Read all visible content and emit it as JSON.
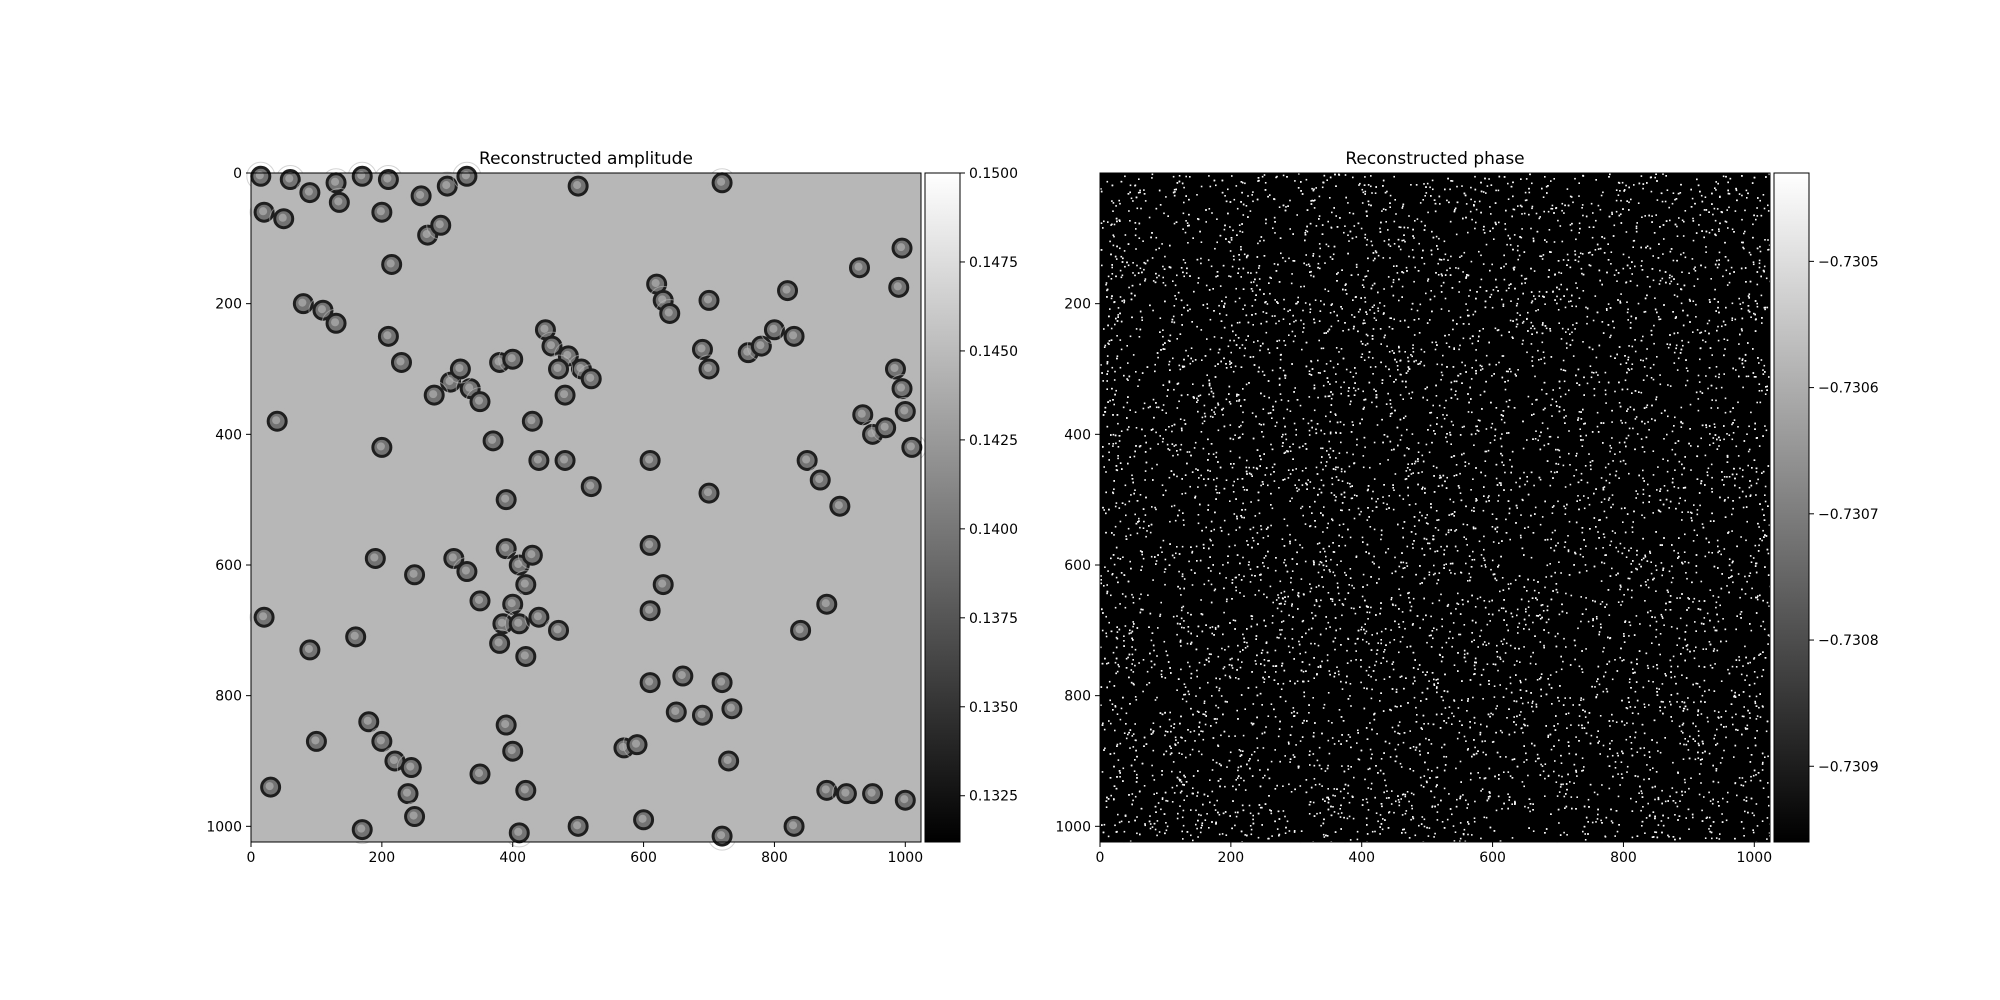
{
  "figure": {
    "background": "#ffffff"
  },
  "chart_data": [
    {
      "type": "heatmap",
      "title": "Reconstructed amplitude",
      "xlabel": "",
      "ylabel": "",
      "image_size": [
        1024,
        1024
      ],
      "xlim": [
        0,
        1024
      ],
      "ylim": [
        1024,
        0
      ],
      "x_ticks": [
        0,
        200,
        400,
        600,
        800,
        1000
      ],
      "y_ticks": [
        0,
        200,
        400,
        600,
        800,
        1000
      ],
      "colormap": "gray",
      "background_level": 0.1447,
      "description_level_range": [
        0.1312,
        0.15
      ],
      "colorbar": {
        "vmin": 0.1312,
        "vmax": 0.15,
        "ticks": [
          "0.1325",
          "0.1350",
          "0.1375",
          "0.1400",
          "0.1425",
          "0.1450",
          "0.1475",
          "0.1500"
        ]
      },
      "cells": [
        [
          15,
          5
        ],
        [
          60,
          10
        ],
        [
          90,
          30
        ],
        [
          130,
          15
        ],
        [
          170,
          5
        ],
        [
          210,
          10
        ],
        [
          260,
          35
        ],
        [
          300,
          20
        ],
        [
          330,
          5
        ],
        [
          20,
          60
        ],
        [
          50,
          70
        ],
        [
          135,
          45
        ],
        [
          200,
          60
        ],
        [
          270,
          95
        ],
        [
          290,
          80
        ],
        [
          215,
          140
        ],
        [
          500,
          20
        ],
        [
          720,
          15
        ],
        [
          995,
          115
        ],
        [
          990,
          175
        ],
        [
          930,
          145
        ],
        [
          80,
          200
        ],
        [
          110,
          210
        ],
        [
          130,
          230
        ],
        [
          210,
          250
        ],
        [
          230,
          290
        ],
        [
          620,
          170
        ],
        [
          630,
          195
        ],
        [
          640,
          215
        ],
        [
          700,
          195
        ],
        [
          820,
          180
        ],
        [
          305,
          320
        ],
        [
          335,
          330
        ],
        [
          350,
          350
        ],
        [
          280,
          340
        ],
        [
          320,
          300
        ],
        [
          380,
          290
        ],
        [
          400,
          285
        ],
        [
          450,
          240
        ],
        [
          460,
          265
        ],
        [
          485,
          280
        ],
        [
          505,
          300
        ],
        [
          520,
          315
        ],
        [
          480,
          340
        ],
        [
          470,
          300
        ],
        [
          690,
          270
        ],
        [
          700,
          300
        ],
        [
          760,
          275
        ],
        [
          780,
          265
        ],
        [
          800,
          240
        ],
        [
          830,
          250
        ],
        [
          985,
          300
        ],
        [
          995,
          330
        ],
        [
          1000,
          365
        ],
        [
          1010,
          420
        ],
        [
          935,
          370
        ],
        [
          950,
          400
        ],
        [
          970,
          390
        ],
        [
          40,
          380
        ],
        [
          200,
          420
        ],
        [
          370,
          410
        ],
        [
          430,
          380
        ],
        [
          440,
          440
        ],
        [
          480,
          440
        ],
        [
          610,
          440
        ],
        [
          850,
          440
        ],
        [
          870,
          470
        ],
        [
          900,
          510
        ],
        [
          700,
          490
        ],
        [
          520,
          480
        ],
        [
          390,
          500
        ],
        [
          190,
          590
        ],
        [
          250,
          615
        ],
        [
          310,
          590
        ],
        [
          330,
          610
        ],
        [
          350,
          655
        ],
        [
          390,
          575
        ],
        [
          410,
          600
        ],
        [
          430,
          585
        ],
        [
          420,
          630
        ],
        [
          400,
          660
        ],
        [
          385,
          690
        ],
        [
          410,
          690
        ],
        [
          440,
          680
        ],
        [
          470,
          700
        ],
        [
          420,
          740
        ],
        [
          380,
          720
        ],
        [
          610,
          570
        ],
        [
          630,
          630
        ],
        [
          610,
          670
        ],
        [
          880,
          660
        ],
        [
          840,
          700
        ],
        [
          20,
          680
        ],
        [
          90,
          730
        ],
        [
          160,
          710
        ],
        [
          100,
          870
        ],
        [
          610,
          780
        ],
        [
          660,
          770
        ],
        [
          720,
          780
        ],
        [
          735,
          820
        ],
        [
          650,
          825
        ],
        [
          690,
          830
        ],
        [
          180,
          840
        ],
        [
          200,
          870
        ],
        [
          220,
          900
        ],
        [
          245,
          910
        ],
        [
          240,
          950
        ],
        [
          250,
          985
        ],
        [
          390,
          845
        ],
        [
          400,
          885
        ],
        [
          350,
          920
        ],
        [
          420,
          945
        ],
        [
          570,
          880
        ],
        [
          590,
          875
        ],
        [
          730,
          900
        ],
        [
          880,
          945
        ],
        [
          910,
          950
        ],
        [
          950,
          950
        ],
        [
          1000,
          960
        ],
        [
          30,
          940
        ],
        [
          170,
          1005
        ],
        [
          410,
          1010
        ],
        [
          500,
          1000
        ],
        [
          600,
          990
        ],
        [
          720,
          1015
        ],
        [
          830,
          1000
        ]
      ]
    },
    {
      "type": "heatmap",
      "title": "Reconstructed phase",
      "xlabel": "",
      "ylabel": "",
      "image_size": [
        1024,
        1024
      ],
      "xlim": [
        0,
        1024
      ],
      "ylim": [
        1024,
        0
      ],
      "x_ticks": [
        0,
        200,
        400,
        600,
        800,
        1000
      ],
      "y_ticks": [
        200,
        400,
        600,
        800,
        1000
      ],
      "colormap": "gray",
      "background_level": -0.73096,
      "speckle_level": -0.73044,
      "speckle_count": 9000,
      "colorbar": {
        "vmin": -0.73096,
        "vmax": -0.73043,
        "ticks": [
          "−0.7305",
          "−0.7306",
          "−0.7307",
          "−0.7308",
          "−0.7309"
        ]
      }
    }
  ]
}
